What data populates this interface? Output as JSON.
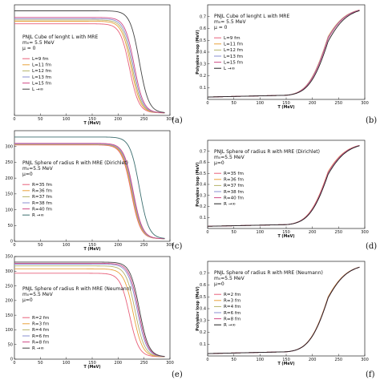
{
  "figure": {
    "panel_tags": [
      "(a)",
      "(b)",
      "(c)",
      "(d)",
      "(e)",
      "(f)"
    ]
  },
  "chart_data": [
    {
      "type": "line",
      "panel": "(a)",
      "xlabel": "T (MeV)",
      "ylabel": "",
      "xlim": [
        0,
        300
      ],
      "ylim": [
        0,
        350
      ],
      "xticks": [
        0,
        50,
        100,
        150,
        200,
        250,
        300
      ],
      "yticks": [],
      "title_lines": [
        "PNJL Cube of lenght L with MRE",
        "m₀= 5.5 MeV",
        "μ = 0"
      ],
      "legend_position": "center-left",
      "series": [
        {
          "name": "L=9 fm",
          "color": "#e8607a",
          "plateau": 282,
          "tc": 222
        },
        {
          "name": "L=11 fm",
          "color": "#e9a23b",
          "plateau": 290,
          "tc": 225
        },
        {
          "name": "L=12 fm",
          "color": "#b5b26a",
          "plateau": 294,
          "tc": 227
        },
        {
          "name": "L=13 fm",
          "color": "#8a8fd0",
          "plateau": 298,
          "tc": 229
        },
        {
          "name": "L=15 fm",
          "color": "#cf4a86",
          "plateau": 302,
          "tc": 231
        },
        {
          "name": "L →∞",
          "color": "#444444",
          "plateau": 323,
          "tc": 241
        }
      ]
    },
    {
      "type": "line",
      "panel": "(b)",
      "xlabel": "T (MeV)",
      "ylabel": "Polyakov loop (MeV)",
      "xlim": [
        0,
        300
      ],
      "ylim": [
        0,
        0.8
      ],
      "xticks": [
        0,
        50,
        100,
        150,
        200,
        250,
        300
      ],
      "yticks": [
        0.1,
        0.2,
        0.3,
        0.4,
        0.5,
        0.6,
        0.7
      ],
      "title_lines": [
        "PNJL Cube of lenght L with MRE",
        "m₀= 5.5 MeV",
        "μ = 0"
      ],
      "legend_position": "center-left",
      "series": [
        {
          "name": "L=9 fm",
          "color": "#e8607a",
          "onset": 215
        },
        {
          "name": "L=11 fm",
          "color": "#e9a23b",
          "onset": 215
        },
        {
          "name": "L=12 fm",
          "color": "#b5b26a",
          "onset": 216
        },
        {
          "name": "L=13 fm",
          "color": "#8a8fd0",
          "onset": 216
        },
        {
          "name": "L=15 fm",
          "color": "#cf4a86",
          "onset": 217
        },
        {
          "name": "L →∞",
          "color": "#222222",
          "onset": 220
        }
      ]
    },
    {
      "type": "line",
      "panel": "(c)",
      "xlabel": "T (MeV)",
      "ylabel": "",
      "xlim": [
        0,
        300
      ],
      "ylim": [
        0,
        350
      ],
      "xticks": [
        0,
        50,
        100,
        150,
        200,
        250,
        300
      ],
      "yticks": [
        0,
        50,
        100,
        150,
        200,
        250,
        300
      ],
      "title_lines": [
        "PNJL Sphere of radius R with MRE (Dirichlet)",
        "m₀=5.5 MeV",
        "μ=0"
      ],
      "legend_position": "center-left",
      "series": [
        {
          "name": "R=35 fm",
          "color": "#e8607a",
          "plateau": 297,
          "tc": 225
        },
        {
          "name": "R=36 fm",
          "color": "#e9a23b",
          "plateau": 298,
          "tc": 226
        },
        {
          "name": "R=37 fm",
          "color": "#b5b26a",
          "plateau": 299,
          "tc": 227
        },
        {
          "name": "R=38 fm",
          "color": "#8a8fd0",
          "plateau": 300,
          "tc": 228
        },
        {
          "name": "R=40 fm",
          "color": "#cf4a86",
          "plateau": 302,
          "tc": 229
        },
        {
          "name": "R →∞",
          "color": "#3d6f70",
          "plateau": 322,
          "tc": 241
        }
      ]
    },
    {
      "type": "line",
      "panel": "(d)",
      "xlabel": "T (MeV)",
      "ylabel": "Polyakov loop (MeV)",
      "xlim": [
        0,
        300
      ],
      "ylim": [
        0,
        0.8
      ],
      "xticks": [
        0,
        50,
        100,
        150,
        200,
        250,
        300
      ],
      "yticks": [
        0.1,
        0.2,
        0.3,
        0.4,
        0.5,
        0.6,
        0.7
      ],
      "title_lines": [
        "PNJL Sphere of radius R with MRE (Dirichlet)",
        "m₀=5.5 MeV",
        "μ=0"
      ],
      "legend_position": "center-left",
      "series": [
        {
          "name": "R=35 fm",
          "color": "#e8607a",
          "onset": 217
        },
        {
          "name": "R=36 fm",
          "color": "#e9a23b",
          "onset": 217
        },
        {
          "name": "R=37 fm",
          "color": "#b5b26a",
          "onset": 218
        },
        {
          "name": "R=38 fm",
          "color": "#8a8fd0",
          "onset": 218
        },
        {
          "name": "R=40 fm",
          "color": "#cf4a86",
          "onset": 218
        },
        {
          "name": "R →∞",
          "color": "#222222",
          "onset": 220
        }
      ]
    },
    {
      "type": "line",
      "panel": "(e)",
      "xlabel": "T (MeV)",
      "ylabel": "",
      "xlim": [
        0,
        300
      ],
      "ylim": [
        0,
        350
      ],
      "xticks": [
        0,
        50,
        100,
        150,
        200,
        250,
        300
      ],
      "yticks": [
        0,
        50,
        100,
        150,
        200,
        250,
        300,
        350
      ],
      "title_lines": [
        "PNJL Sphere of radius R with MRE (Neumann)",
        "m₀=5.5 MeV",
        "μ=0"
      ],
      "legend_position": "bottom-left",
      "series": [
        {
          "name": "R=2 fm",
          "color": "#e8607a",
          "plateau": 285,
          "tc": 222
        },
        {
          "name": "R=3 fm",
          "color": "#e9a23b",
          "plateau": 300,
          "tc": 229
        },
        {
          "name": "R=4 fm",
          "color": "#b5b26a",
          "plateau": 310,
          "tc": 233
        },
        {
          "name": "R=6 fm",
          "color": "#8a8fd0",
          "plateau": 316,
          "tc": 237
        },
        {
          "name": "R=8 fm",
          "color": "#cf4a86",
          "plateau": 319,
          "tc": 239
        },
        {
          "name": "R →∞",
          "color": "#444444",
          "plateau": 323,
          "tc": 241
        }
      ]
    },
    {
      "type": "line",
      "panel": "(f)",
      "xlabel": "T (MeV)",
      "ylabel": "Polyakov loop (MeV)",
      "xlim": [
        0,
        300
      ],
      "ylim": [
        0,
        0.8
      ],
      "xticks": [
        0,
        50,
        100,
        150,
        200,
        250,
        300
      ],
      "yticks": [
        0.1,
        0.2,
        0.3,
        0.4,
        0.5,
        0.6,
        0.7
      ],
      "title_lines": [
        "PNJL Sphere of radius R with MRE (Neumann)",
        "m₀=5.5 MeV",
        "μ=0"
      ],
      "legend_position": "center-left",
      "series": [
        {
          "name": "R=2 fm",
          "color": "#e8607a",
          "onset": 219
        },
        {
          "name": "R=3 fm",
          "color": "#e9a23b",
          "onset": 219
        },
        {
          "name": "R=4 fm",
          "color": "#b5b26a",
          "onset": 220
        },
        {
          "name": "R=6 fm",
          "color": "#8a8fd0",
          "onset": 220
        },
        {
          "name": "R=8 fm",
          "color": "#cf4a86",
          "onset": 220
        },
        {
          "name": "R →∞",
          "color": "#222222",
          "onset": 220
        }
      ]
    }
  ]
}
